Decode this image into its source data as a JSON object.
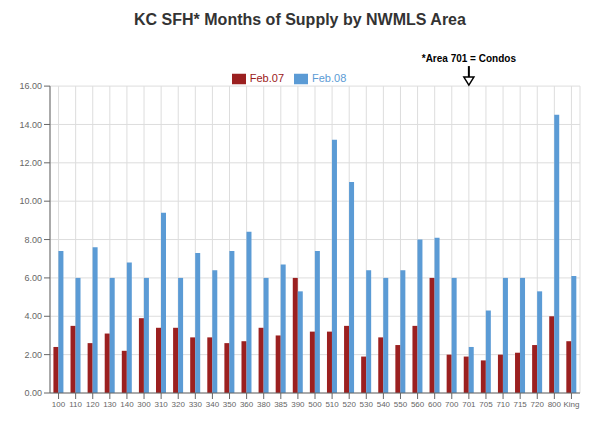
{
  "chart_data": {
    "type": "bar",
    "title": "KC SFH* Months of Supply by NWMLS Area",
    "annotations": [
      {
        "text": "*Area 701 = Condos",
        "x": "701"
      }
    ],
    "categories": [
      "100",
      "110",
      "120",
      "130",
      "140",
      "300",
      "310",
      "320",
      "330",
      "340",
      "350",
      "360",
      "380",
      "385",
      "390",
      "500",
      "510",
      "520",
      "530",
      "540",
      "550",
      "560",
      "600",
      "700",
      "701",
      "705",
      "710",
      "715",
      "720",
      "800",
      "King"
    ],
    "series": [
      {
        "name": "Feb.07",
        "color": "#9B2020",
        "values": [
          2.4,
          3.5,
          2.6,
          3.1,
          2.2,
          3.9,
          3.4,
          3.4,
          2.9,
          2.9,
          2.6,
          2.7,
          3.4,
          3.0,
          6.0,
          3.2,
          3.2,
          3.5,
          1.9,
          2.9,
          2.5,
          3.5,
          6.0,
          2.0,
          1.9,
          1.7,
          2.0,
          2.1,
          2.5,
          4.0,
          2.7
        ]
      },
      {
        "name": "Feb.08",
        "color": "#5B9BD5",
        "values": [
          7.4,
          6.0,
          7.6,
          6.0,
          6.8,
          6.0,
          9.4,
          6.0,
          7.3,
          6.4,
          7.4,
          8.4,
          6.0,
          6.7,
          5.3,
          7.4,
          13.2,
          11.0,
          6.4,
          6.0,
          6.4,
          8.0,
          8.1,
          6.0,
          2.4,
          4.3,
          6.0,
          6.0,
          5.3,
          14.5,
          6.1
        ]
      }
    ],
    "ylim": [
      0,
      16.0
    ],
    "yticks": [
      {
        "value": 0,
        "label": "0.00"
      },
      {
        "value": 2,
        "label": "2.00"
      },
      {
        "value": 4,
        "label": "4.00"
      },
      {
        "value": 6,
        "label": "6.00"
      },
      {
        "value": 8,
        "label": "8.00"
      },
      {
        "value": 10,
        "label": "10.00"
      },
      {
        "value": 12,
        "label": "12.00"
      },
      {
        "value": 14,
        "label": "14.00"
      },
      {
        "value": 16,
        "label": "16.00"
      }
    ],
    "grid": true,
    "legend": "top"
  }
}
